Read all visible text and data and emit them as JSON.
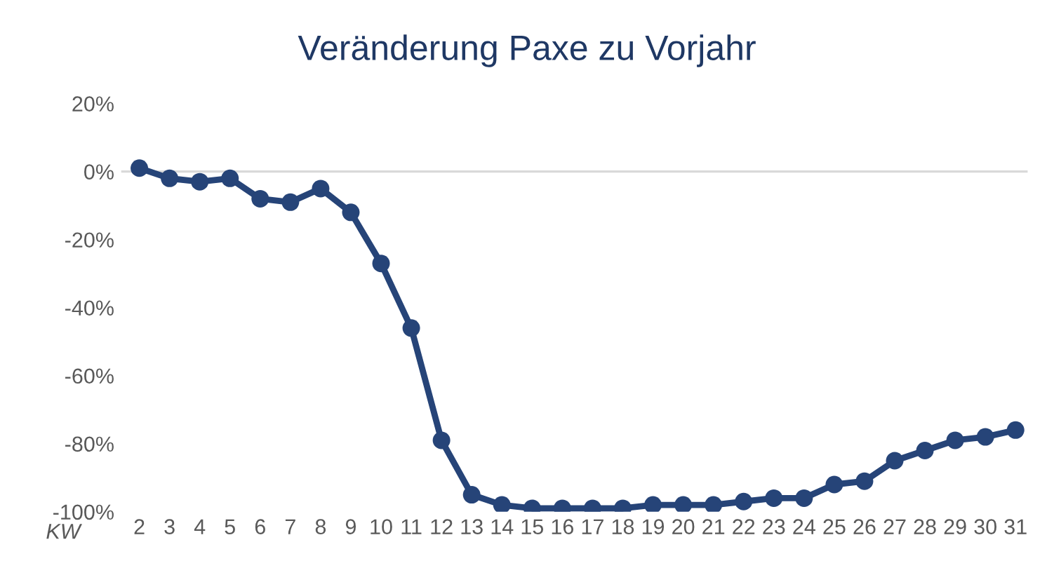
{
  "chart_data": {
    "type": "line",
    "title": "Veränderung Paxe zu Vorjahr",
    "xlabel": "KW",
    "categories": [
      "2",
      "3",
      "4",
      "5",
      "6",
      "7",
      "8",
      "9",
      "10",
      "11",
      "12",
      "13",
      "14",
      "15",
      "16",
      "17",
      "18",
      "19",
      "20",
      "21",
      "22",
      "23",
      "24",
      "25",
      "26",
      "27",
      "28",
      "29",
      "30",
      "31"
    ],
    "series": [
      {
        "color": "#264478",
        "values": [
          1,
          -2,
          -3,
          -2,
          -8,
          -9,
          -5,
          -12,
          -27,
          -46,
          -79,
          -95,
          -98,
          -99,
          -99,
          -99,
          -99,
          -98,
          -98,
          -98,
          -97,
          -96,
          -96,
          -92,
          -91,
          -85,
          -82,
          -79,
          -78,
          -76
        ]
      }
    ],
    "ylim": [
      -100,
      20
    ],
    "yticks": [
      {
        "value": -100,
        "label": "-100%"
      },
      {
        "value": -80,
        "label": "-80%"
      },
      {
        "value": -60,
        "label": "-60%"
      },
      {
        "value": -40,
        "label": "-40%"
      },
      {
        "value": -20,
        "label": "-20%"
      },
      {
        "value": 0,
        "label": "0%"
      },
      {
        "value": 20,
        "label": "20%"
      }
    ],
    "ref_lines": [
      {
        "axis": "y",
        "value": 0,
        "color": "#d9d9d9"
      }
    ],
    "marker": "circle",
    "line_style": "solid",
    "grid": false,
    "legend": false
  }
}
